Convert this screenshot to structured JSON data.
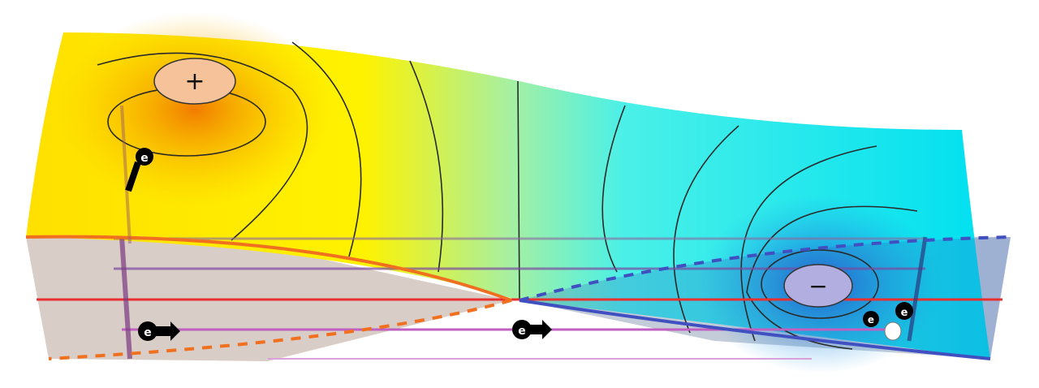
{
  "electrodes": {
    "positive": {
      "symbol": "+",
      "color": "#f6c29a"
    },
    "negative": {
      "symbol": "−",
      "color": "#b3aee0"
    }
  },
  "electron": {
    "symbol": "e"
  },
  "colors": {
    "high_potential": "#ffee00",
    "mid_potential": "#a8f0a0",
    "low_potential": "#00e8f0",
    "source_glow": "#f08a00",
    "sink_glow": "#2a7ad8",
    "left_shadow": "#d9cdc8",
    "right_shadow": "#b7bfd0",
    "red_line": "#e83030"
  }
}
